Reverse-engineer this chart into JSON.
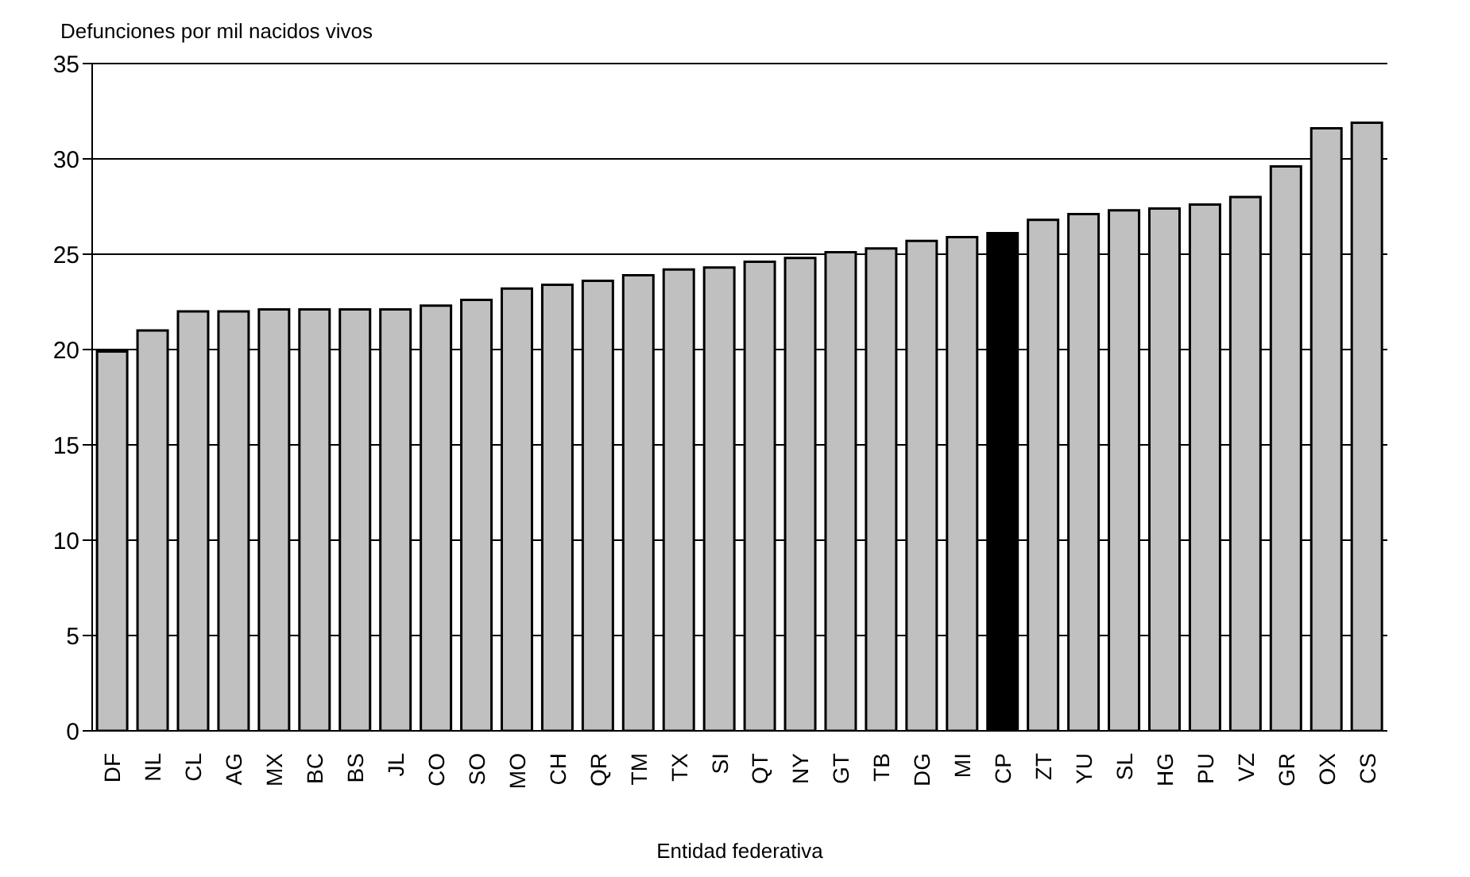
{
  "chart_data": {
    "type": "bar",
    "ylabel": "Defunciones por mil nacidos vivos",
    "xlabel": "Entidad federativa",
    "categories": [
      "DF",
      "NL",
      "CL",
      "AG",
      "MX",
      "BC",
      "BS",
      "JL",
      "CO",
      "SO",
      "MO",
      "CH",
      "QR",
      "TM",
      "TX",
      "SI",
      "QT",
      "NY",
      "GT",
      "TB",
      "DG",
      "MI",
      "CP",
      "ZT",
      "YU",
      "SL",
      "HG",
      "PU",
      "VZ",
      "GR",
      "OX",
      "CS"
    ],
    "values": [
      19.9,
      21.0,
      22.0,
      22.0,
      22.1,
      22.1,
      22.1,
      22.1,
      22.3,
      22.6,
      23.2,
      23.4,
      23.6,
      23.9,
      24.2,
      24.3,
      24.6,
      24.8,
      25.1,
      25.3,
      25.7,
      25.9,
      26.1,
      26.8,
      27.1,
      27.3,
      27.4,
      27.6,
      28.0,
      29.6,
      31.6,
      31.9
    ],
    "colors": [
      "#c0c0c0",
      "#c0c0c0",
      "#c0c0c0",
      "#c0c0c0",
      "#c0c0c0",
      "#c0c0c0",
      "#c0c0c0",
      "#c0c0c0",
      "#c0c0c0",
      "#c0c0c0",
      "#c0c0c0",
      "#c0c0c0",
      "#c0c0c0",
      "#c0c0c0",
      "#c0c0c0",
      "#c0c0c0",
      "#c0c0c0",
      "#c0c0c0",
      "#c0c0c0",
      "#c0c0c0",
      "#c0c0c0",
      "#c0c0c0",
      "#000000",
      "#c0c0c0",
      "#c0c0c0",
      "#c0c0c0",
      "#c0c0c0",
      "#c0c0c0",
      "#c0c0c0",
      "#c0c0c0",
      "#c0c0c0",
      "#c0c0c0"
    ],
    "ylim": [
      0,
      35
    ],
    "yticks": [
      0,
      5,
      10,
      15,
      20,
      25,
      30,
      35
    ],
    "grid": "y"
  }
}
